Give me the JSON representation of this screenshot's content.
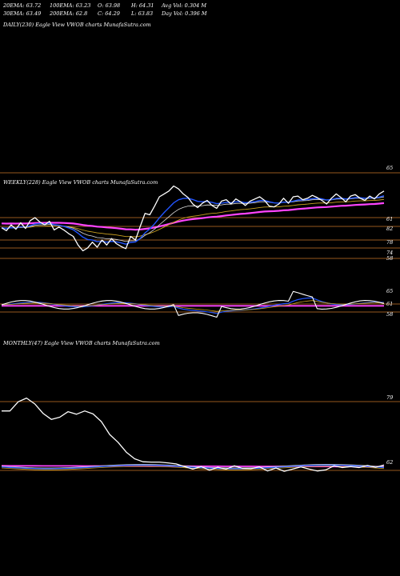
{
  "stats": {
    "ema20": "20EMA: 63.72",
    "ema100": "100EMA: 63.23",
    "open": "O: 63.98",
    "high": "H: 64.31",
    "avgvol": "Avg Vol: 0.304  M",
    "ema30": "30EMA: 63.49",
    "ema200": "200EMA: 62.8",
    "close": "C: 64.29",
    "low": "L: 63.83",
    "dayvol": "Day Vol: 0.396  M"
  },
  "panels": {
    "daily_title": "DAILY(230) Eagle   View  VWOB charts MunafaSutra.com",
    "weekly_title": "WEEKLY(228) Eagle   View  VWOB charts MunafaSutra.com",
    "monthly_title": "MONTHLY(47) Eagle   View  VWOB charts MunafaSutra.com"
  },
  "colors": {
    "background": "#000000",
    "price": "#ffffff",
    "ema_blue": "#2255ff",
    "ema_white": "#dddddd",
    "ema_gold": "#c8a020",
    "ema_magenta": "#ff44ff",
    "grid": "#c87428"
  },
  "chart_data": [
    {
      "type": "line",
      "title": "WEEKLY(228) Eagle   View  VWOB charts MunafaSutra.com",
      "tick_labels": [
        "65",
        "61",
        "82",
        "78",
        "74",
        "58"
      ],
      "x": [
        0,
        1,
        2,
        3,
        4,
        5,
        6,
        7,
        8,
        9,
        10,
        11,
        12,
        13,
        14,
        15,
        16,
        17,
        18,
        19,
        20,
        21,
        22,
        23,
        24,
        25,
        26,
        27,
        28,
        29,
        30,
        31,
        32,
        33,
        34,
        35,
        36,
        37,
        38,
        39,
        40,
        41,
        42,
        43,
        44,
        45,
        46,
        47,
        48,
        49,
        50,
        51,
        52,
        53,
        54,
        55,
        56,
        57,
        58,
        59,
        60,
        61,
        62,
        63,
        64,
        65,
        66,
        67,
        68,
        69,
        70,
        71,
        72,
        73,
        74,
        75,
        76,
        77,
        78,
        79,
        80
      ],
      "series": [
        {
          "values": [
            59.2,
            58.8,
            59.6,
            59.0,
            59.9,
            59.1,
            60.2,
            60.6,
            60.0,
            59.6,
            60.1,
            58.9,
            59.3,
            58.9,
            58.4,
            58.0,
            56.8,
            56.0,
            56.4,
            57.2,
            56.5,
            57.5,
            56.8,
            57.7,
            57.0,
            56.6,
            56.3,
            58.0,
            57.5,
            59.4,
            61.2,
            61.0,
            62.2,
            63.5,
            63.9,
            64.3,
            65.0,
            64.6,
            63.9,
            63.4,
            62.5,
            62.0,
            62.6,
            63.0,
            62.3,
            61.9,
            62.9,
            63.1,
            62.5,
            63.2,
            62.8,
            62.3,
            62.9,
            63.2,
            63.5,
            63.0,
            62.2,
            62.1,
            62.5,
            63.3,
            62.6,
            63.5,
            63.6,
            63.1,
            63.3,
            63.7,
            63.4,
            63.0,
            62.5,
            63.3,
            63.9,
            63.4,
            62.8,
            63.6,
            63.8,
            63.3,
            63.0,
            63.6,
            63.2,
            63.9,
            64.3
          ]
        }
      ]
    },
    {
      "type": "line",
      "title": "MONTHLY(47) Eagle   View  VWOB charts MunafaSutra.com",
      "tick_labels": [
        "79",
        "62"
      ],
      "x": [
        0,
        1,
        2,
        3,
        4,
        5,
        6,
        7,
        8,
        9,
        10,
        11,
        12,
        13,
        14,
        15,
        16,
        17,
        18,
        19,
        20,
        21,
        22,
        23,
        24,
        25,
        26,
        27,
        28,
        29,
        30,
        31,
        32,
        33,
        34,
        35,
        36,
        37,
        38,
        39,
        40,
        41,
        42,
        43,
        44,
        45,
        46
      ],
      "series": [
        {
          "values": [
            77.3,
            77.3,
            79.8,
            80.8,
            79.2,
            76.6,
            75.0,
            75.6,
            77.1,
            76.4,
            77.3,
            76.5,
            74.4,
            70.9,
            68.8,
            66.1,
            64.3,
            63.5,
            63.4,
            63.4,
            63.2,
            62.9,
            62.2,
            61.5,
            62.2,
            61.2,
            62.0,
            61.5,
            62.4,
            61.7,
            61.6,
            62.1,
            61.0,
            61.8,
            60.9,
            61.5,
            62.1,
            61.5,
            61.0,
            61.3,
            62.4,
            61.9,
            62.2,
            61.9,
            62.5,
            62.0,
            62.6
          ]
        }
      ]
    }
  ]
}
